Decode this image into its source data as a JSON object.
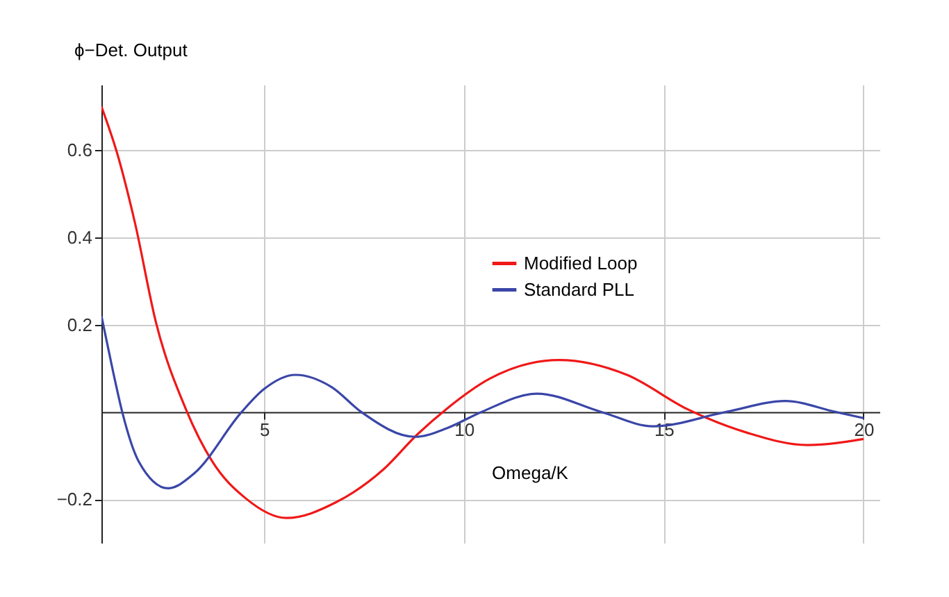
{
  "chart_data": {
    "type": "line",
    "xlabel": "Omega/K",
    "ylabel": "ϕ−Det. Output",
    "xlim": [
      0.93,
      20.4
    ],
    "ylim": [
      -0.3,
      0.75
    ],
    "xticks": [
      5,
      10,
      15,
      20
    ],
    "yticks": [
      -0.2,
      0.2,
      0.4,
      0.6
    ],
    "grid": true,
    "legend": "right",
    "line_style": "solid",
    "marker": "none",
    "series": [
      {
        "name": "Modified Loop",
        "color": "#f01818",
        "x": [
          0.93,
          1.32,
          1.77,
          2.29,
          3.05,
          3.7,
          4.54,
          5.56,
          6.8,
          7.97,
          8.84,
          9.58,
          10.64,
          12.38,
          14.08,
          15.6,
          17.1,
          18.6,
          20
        ],
        "values": [
          0.7,
          0.594,
          0.433,
          0.207,
          0.005,
          -0.113,
          -0.198,
          -0.243,
          -0.207,
          -0.133,
          -0.051,
          0.008,
          0.076,
          0.119,
          0.085,
          0.006,
          -0.048,
          -0.076,
          -0.062
        ]
      },
      {
        "name": "Standard PLL",
        "color": "#3a46a8",
        "x": [
          0.93,
          1.22,
          1.45,
          1.86,
          2.6,
          3.25,
          4.44,
          4.98,
          5.79,
          6.69,
          7.43,
          8.78,
          9.58,
          10.44,
          11.83,
          13.44,
          14.73,
          16.56,
          18.04,
          19.3,
          20
        ],
        "values": [
          0.22,
          0.093,
          0.0,
          -0.113,
          -0.175,
          -0.141,
          0.0,
          0.051,
          0.085,
          0.057,
          0.0,
          -0.057,
          -0.037,
          0.0,
          0.042,
          0.0,
          -0.033,
          0.0,
          0.025,
          0.0,
          -0.014
        ]
      }
    ]
  }
}
